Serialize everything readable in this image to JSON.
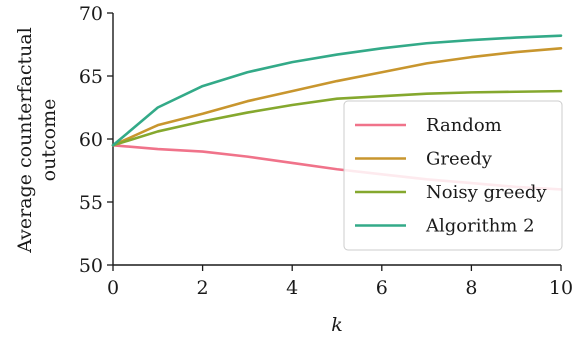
{
  "chart_data": {
    "type": "line",
    "xlabel": "k",
    "ylabel_lines": [
      "Average counterfactual",
      "outcome"
    ],
    "xlim": [
      0,
      10
    ],
    "ylim": [
      50,
      70
    ],
    "xticks": [
      0,
      2,
      4,
      6,
      8,
      10
    ],
    "yticks": [
      50,
      55,
      60,
      65,
      70
    ],
    "grid": false,
    "legend_placement": "lower-right",
    "x": [
      0,
      1,
      2,
      3,
      4,
      5,
      6,
      7,
      8,
      9,
      10
    ],
    "series": [
      {
        "name": "Random",
        "color": "#f0738a",
        "values": [
          59.5,
          59.2,
          59.0,
          58.6,
          58.1,
          57.6,
          57.2,
          56.8,
          56.5,
          56.2,
          56.0
        ]
      },
      {
        "name": "Greedy",
        "color": "#c8962e",
        "values": [
          59.5,
          61.1,
          62.0,
          63.0,
          63.8,
          64.6,
          65.3,
          66.0,
          66.5,
          66.9,
          67.2
        ]
      },
      {
        "name": "Noisy greedy",
        "color": "#85a82e",
        "values": [
          59.5,
          60.6,
          61.4,
          62.1,
          62.7,
          63.2,
          63.4,
          63.6,
          63.7,
          63.75,
          63.8
        ]
      },
      {
        "name": "Algorithm 2",
        "color": "#33aa88",
        "values": [
          59.5,
          62.5,
          64.2,
          65.3,
          66.1,
          66.7,
          67.2,
          67.6,
          67.85,
          68.05,
          68.2
        ]
      }
    ]
  }
}
